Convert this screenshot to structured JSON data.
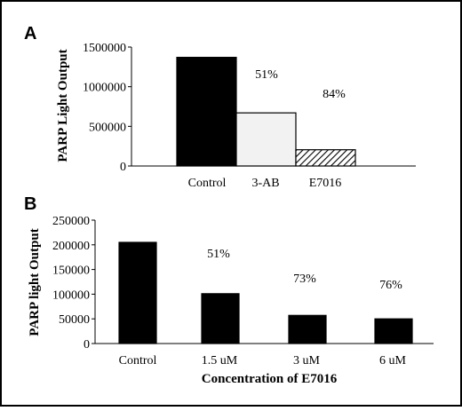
{
  "chart_data": [
    {
      "panel": "A",
      "type": "bar",
      "categories": [
        "Control",
        "3-AB",
        "E7016"
      ],
      "values": [
        1370000,
        670000,
        205000
      ],
      "bar_fills": [
        "#000000",
        "#f2f2f2",
        "hatch"
      ],
      "annotations": [
        "51%",
        "84%"
      ],
      "xlabel": "",
      "ylabel": "PARP Light Output",
      "ylim": [
        0,
        1500000
      ],
      "yticks": [
        "0",
        "500000",
        "1000000",
        "1500000"
      ],
      "grid": false
    },
    {
      "panel": "B",
      "type": "bar",
      "categories": [
        "Control",
        "1.5 uM",
        "3 uM",
        "6 uM"
      ],
      "values": [
        205000,
        101000,
        57000,
        50000
      ],
      "annotations": [
        "51%",
        "73%",
        "76%"
      ],
      "xlabel": "Concentration of E7016",
      "ylabel": "PARP light Output",
      "ylim": [
        0,
        250000
      ],
      "yticks": [
        "0",
        "50000",
        "100000",
        "150000",
        "200000",
        "250000"
      ],
      "grid": false
    }
  ]
}
